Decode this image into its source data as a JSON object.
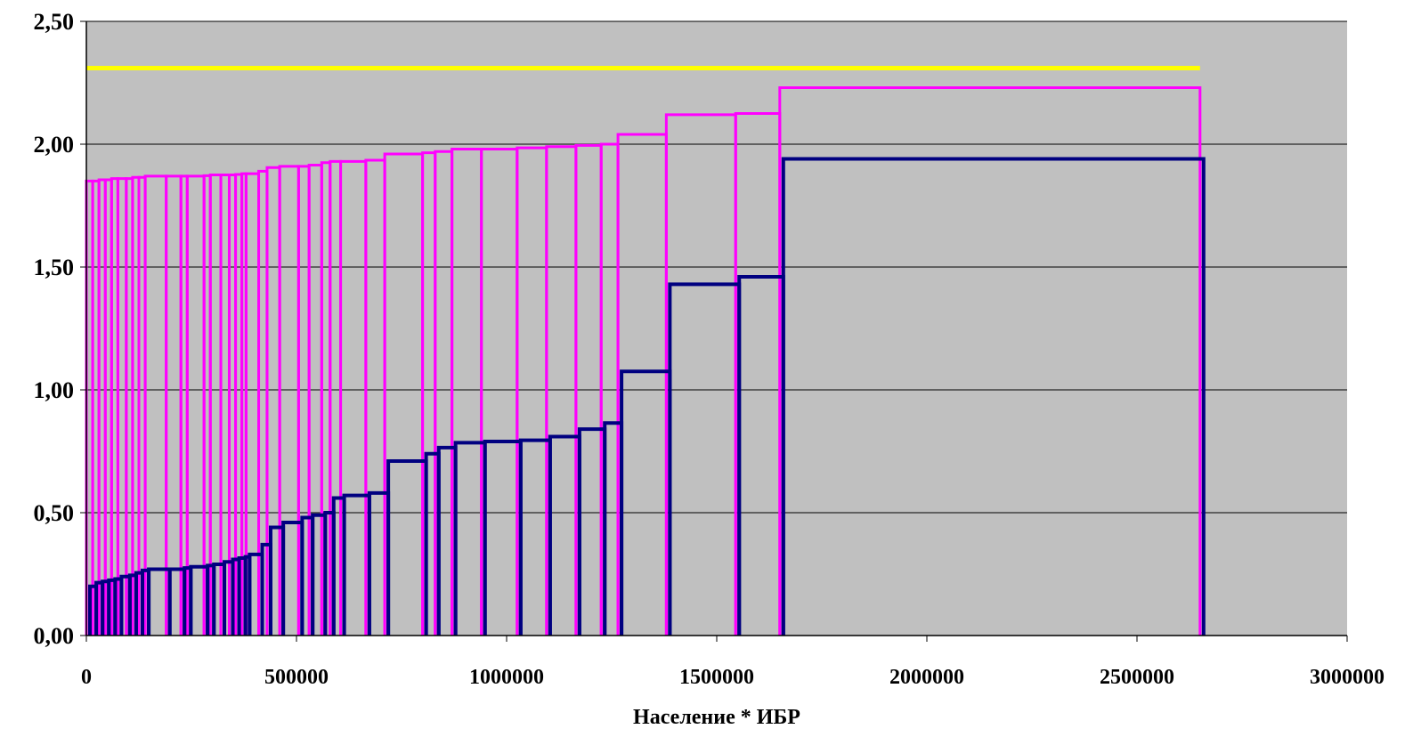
{
  "chart_data": {
    "type": "line",
    "title": "",
    "xlabel": "Население * ИБР",
    "ylabel": "",
    "xlim": [
      0,
      3000000
    ],
    "ylim": [
      0,
      2.5
    ],
    "x_ticks": [
      "0",
      "500000",
      "1000000",
      "1500000",
      "2000000",
      "2500000",
      "3000000"
    ],
    "y_ticks": [
      "0,00",
      "0,50",
      "1,00",
      "1,50",
      "2,00",
      "2,50"
    ],
    "grid": true,
    "legend": "none",
    "colors": {
      "plot_bg": "#c0c0c0",
      "grid": "#000000",
      "yellow": "#ffff00",
      "magenta": "#ff00ff",
      "navy": "#000080"
    },
    "series": [
      {
        "type": "line",
        "color": "#ffff00",
        "x": [
          0,
          2650000
        ],
        "y": [
          2.31,
          2.31
        ]
      },
      {
        "type": "step-bars",
        "color": "#ff00ff",
        "edges": [
          0,
          15000,
          30000,
          45000,
          60000,
          75000,
          95000,
          110000,
          125000,
          140000,
          190000,
          225000,
          240000,
          280000,
          295000,
          320000,
          340000,
          355000,
          370000,
          380000,
          410000,
          430000,
          460000,
          505000,
          530000,
          560000,
          580000,
          605000,
          665000,
          710000,
          800000,
          830000,
          870000,
          940000,
          1025000,
          1095000,
          1165000,
          1225000,
          1265000,
          1380000,
          1545000,
          1650000,
          2650000
        ],
        "values": [
          1.85,
          1.85,
          1.855,
          1.855,
          1.86,
          1.86,
          1.86,
          1.865,
          1.865,
          1.87,
          1.87,
          1.87,
          1.87,
          1.872,
          1.875,
          1.875,
          1.875,
          1.877,
          1.88,
          1.88,
          1.89,
          1.905,
          1.91,
          1.91,
          1.915,
          1.925,
          1.93,
          1.93,
          1.935,
          1.96,
          1.965,
          1.97,
          1.98,
          1.98,
          1.985,
          1.99,
          1.995,
          2.0,
          2.04,
          2.12,
          2.125,
          2.23
        ]
      },
      {
        "type": "step-bars",
        "color": "#000080",
        "edges": [
          0,
          15000,
          30000,
          45000,
          60000,
          75000,
          95000,
          110000,
          125000,
          140000,
          190000,
          225000,
          240000,
          280000,
          295000,
          320000,
          340000,
          355000,
          370000,
          380000,
          410000,
          430000,
          460000,
          505000,
          530000,
          560000,
          580000,
          605000,
          665000,
          710000,
          800000,
          830000,
          870000,
          940000,
          1025000,
          1095000,
          1165000,
          1225000,
          1265000,
          1380000,
          1545000,
          1650000,
          2650000
        ],
        "values": [
          0.2,
          0.215,
          0.22,
          0.225,
          0.23,
          0.24,
          0.245,
          0.255,
          0.265,
          0.27,
          0.27,
          0.275,
          0.28,
          0.285,
          0.29,
          0.3,
          0.31,
          0.315,
          0.32,
          0.33,
          0.37,
          0.44,
          0.46,
          0.48,
          0.49,
          0.5,
          0.56,
          0.57,
          0.58,
          0.71,
          0.74,
          0.765,
          0.785,
          0.79,
          0.795,
          0.81,
          0.84,
          0.865,
          1.075,
          1.43,
          1.46,
          1.94
        ]
      }
    ]
  }
}
